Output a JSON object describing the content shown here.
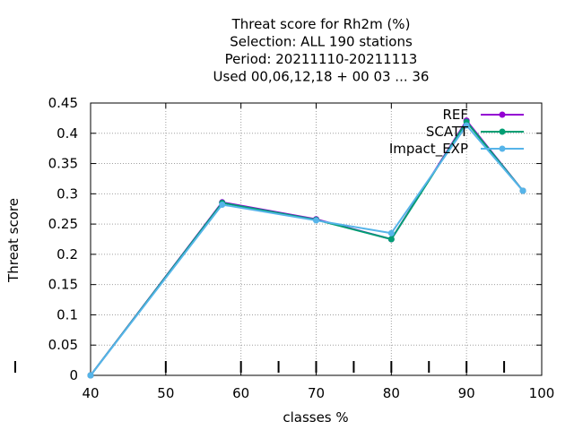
{
  "chart_data": {
    "type": "line",
    "title_lines": [
      "Threat score  for Rh2m (%)",
      "Selection: ALL    190 stations",
      "Period: 20211110-20211113",
      "Used  00,06,12,18 + 00 03 ... 36"
    ],
    "xlabel": "classes %",
    "ylabel": "Threat score",
    "xlim": [
      40,
      100
    ],
    "ylim": [
      0,
      0.45
    ],
    "xticks": [
      40,
      50,
      60,
      70,
      80,
      90,
      100
    ],
    "yticks": [
      0,
      0.05,
      0.1,
      0.15,
      0.2,
      0.25,
      0.3,
      0.35,
      0.4,
      0.45
    ],
    "xtick_labels": [
      "40",
      "50",
      "60",
      "70",
      "80",
      "90",
      "100"
    ],
    "ytick_labels": [
      "0",
      "0.05",
      "0.1",
      "0.15",
      "0.2",
      "0.25",
      "0.3",
      "0.35",
      "0.4",
      "0.45"
    ],
    "extra_bottom_ticks": [
      65,
      75,
      85,
      95
    ],
    "grid": true,
    "legend_position": "top-right",
    "series": [
      {
        "name": "REF",
        "color": "#9400d3",
        "x": [
          40,
          57.5,
          70,
          80,
          90,
          97.5
        ],
        "values": [
          0,
          0.286,
          0.258,
          0.225,
          0.421,
          0.305
        ]
      },
      {
        "name": "SCATT",
        "color": "#009e73",
        "x": [
          40,
          57.5,
          70,
          80,
          90,
          97.5
        ],
        "values": [
          0,
          0.285,
          0.257,
          0.225,
          0.419,
          0.305
        ]
      },
      {
        "name": "Impact_EXP",
        "color": "#56b4e9",
        "x": [
          40,
          57.5,
          70,
          80,
          90,
          97.5
        ],
        "values": [
          0,
          0.282,
          0.256,
          0.235,
          0.413,
          0.305
        ]
      }
    ]
  }
}
